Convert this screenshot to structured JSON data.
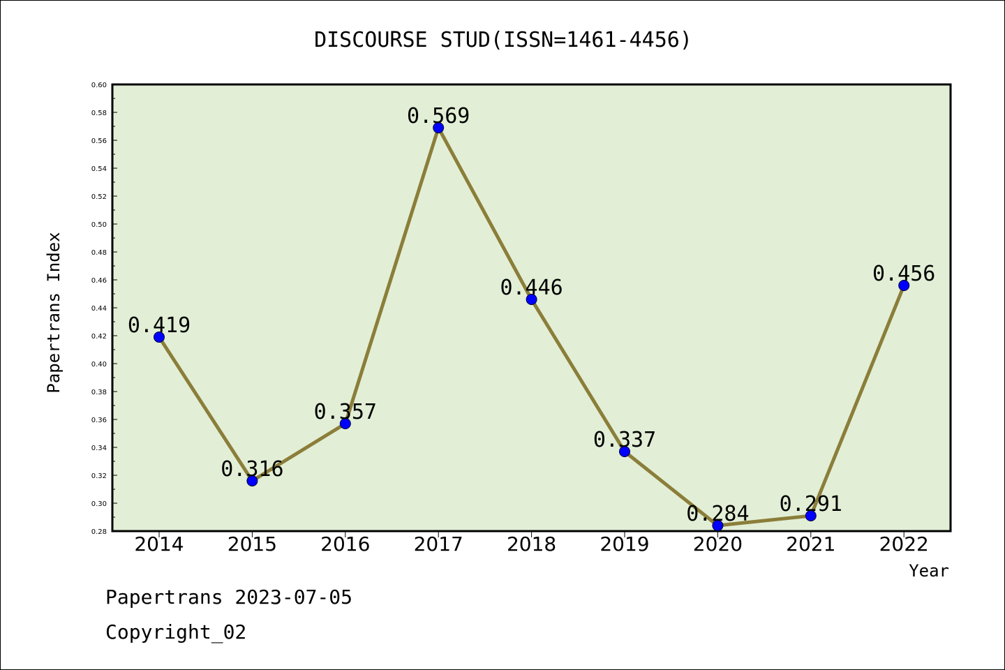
{
  "chart_data": {
    "type": "line",
    "title": "DISCOURSE STUD(ISSN=1461-4456)",
    "xlabel": "Year",
    "ylabel": "Papertrans Index",
    "categories": [
      "2014",
      "2015",
      "2016",
      "2017",
      "2018",
      "2019",
      "2020",
      "2021",
      "2022"
    ],
    "series": [
      {
        "values": [
          0.419,
          0.316,
          0.357,
          0.569,
          0.446,
          0.337,
          0.284,
          0.291,
          0.456
        ],
        "labels": [
          "0.419",
          "0.316",
          "0.357",
          "0.569",
          "0.446",
          "0.337",
          "0.284",
          "0.291",
          "0.456"
        ]
      }
    ],
    "ylim": [
      0.28,
      0.6
    ],
    "yticks": [
      "0.28",
      "0.30",
      "0.32",
      "0.34",
      "0.36",
      "0.38",
      "0.40",
      "0.42",
      "0.44",
      "0.46",
      "0.48",
      "0.50",
      "0.52",
      "0.54",
      "0.56",
      "0.58",
      "0.60"
    ],
    "grid": false,
    "legend": "none",
    "colors": {
      "plot_background": "#e2efd6",
      "line": "#8b7e3a",
      "marker": "#0000ff"
    }
  },
  "footer": {
    "line1": "Papertrans 2023-07-05",
    "line2": "Copyright_02"
  }
}
